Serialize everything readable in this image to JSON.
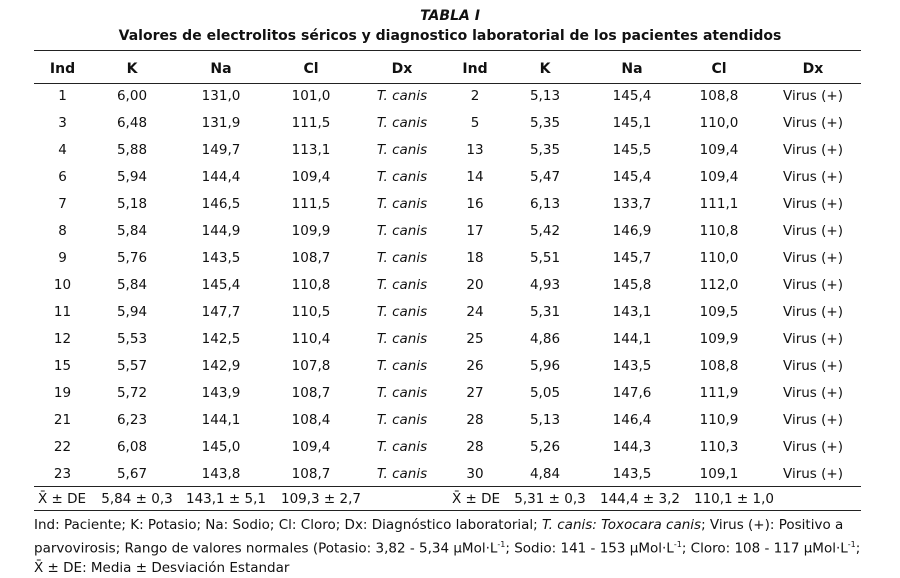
{
  "caption": {
    "label": "TABLA I",
    "title": "Valores de electrolitos séricos y diagnostico laboratorial de los pacientes atendidos"
  },
  "columns": [
    "Ind",
    "K",
    "Na",
    "Cl",
    "Dx",
    "Ind",
    "K",
    "Na",
    "Cl",
    "Dx"
  ],
  "rows": [
    [
      "1",
      "6,00",
      "131,0",
      "101,0",
      "T. canis",
      "2",
      "5,13",
      "145,4",
      "108,8",
      "Virus (+)"
    ],
    [
      "3",
      "6,48",
      "131,9",
      "111,5",
      "T. canis",
      "5",
      "5,35",
      "145,1",
      "110,0",
      "Virus (+)"
    ],
    [
      "4",
      "5,88",
      "149,7",
      "113,1",
      "T. canis",
      "13",
      "5,35",
      "145,5",
      "109,4",
      "Virus (+)"
    ],
    [
      "6",
      "5,94",
      "144,4",
      "109,4",
      "T. canis",
      "14",
      "5,47",
      "145,4",
      "109,4",
      "Virus (+)"
    ],
    [
      "7",
      "5,18",
      "146,5",
      "111,5",
      "T. canis",
      "16",
      "6,13",
      "133,7",
      "111,1",
      "Virus (+)"
    ],
    [
      "8",
      "5,84",
      "144,9",
      "109,9",
      "T. canis",
      "17",
      "5,42",
      "146,9",
      "110,8",
      "Virus (+)"
    ],
    [
      "9",
      "5,76",
      "143,5",
      "108,7",
      "T. canis",
      "18",
      "5,51",
      "145,7",
      "110,0",
      "Virus (+)"
    ],
    [
      "10",
      "5,84",
      "145,4",
      "110,8",
      "T. canis",
      "20",
      "4,93",
      "145,8",
      "112,0",
      "Virus (+)"
    ],
    [
      "11",
      "5,94",
      "147,7",
      "110,5",
      "T. canis",
      "24",
      "5,31",
      "143,1",
      "109,5",
      "Virus (+)"
    ],
    [
      "12",
      "5,53",
      "142,5",
      "110,4",
      "T. canis",
      "25",
      "4,86",
      "144,1",
      "109,9",
      "Virus (+)"
    ],
    [
      "15",
      "5,57",
      "142,9",
      "107,8",
      "T. canis",
      "26",
      "5,96",
      "143,5",
      "108,8",
      "Virus (+)"
    ],
    [
      "19",
      "5,72",
      "143,9",
      "108,7",
      "T. canis",
      "27",
      "5,05",
      "147,6",
      "111,9",
      "Virus (+)"
    ],
    [
      "21",
      "6,23",
      "144,1",
      "108,4",
      "T. canis",
      "28",
      "5,13",
      "146,4",
      "110,9",
      "Virus (+)"
    ],
    [
      "22",
      "6,08",
      "145,0",
      "109,4",
      "T. canis",
      "28",
      "5,26",
      "144,3",
      "110,3",
      "Virus (+)"
    ],
    [
      "23",
      "5,67",
      "143,8",
      "108,7",
      "T. canis",
      "30",
      "4,84",
      "143,5",
      "109,1",
      "Virus (+)"
    ]
  ],
  "summary": {
    "left": {
      "label": "X̄ ± DE",
      "k": "5,84 ± 0,3",
      "na": "143,1 ± 5,1",
      "cl": "109,3 ± 2,7"
    },
    "right": {
      "label": "X̄ ± DE",
      "k": "5,31 ± 0,3",
      "na": "144,4 ± 3,2",
      "cl": "110,1 ± 1,0"
    }
  },
  "footnote": {
    "line1_a": "Ind: Paciente; K: Potasio; Na: Sodio; Cl: Cloro; Dx: Diagnóstico laboratorial; ",
    "line1_it": "T. canis: Toxocara canis",
    "line1_b": "; Virus (+): Positivo a",
    "line2_a": "parvovirosis; Rango de valores normales (Potasio: 3,82 - 5,34 µMol·L",
    "line2_b": "; Sodio: 141 - 153 µMol·L",
    "line2_c": "; Cloro: 108 - 117 µMol·L",
    "line2_d": ";",
    "sup": "-1",
    "line3": "X̄ ± DE: Media ± Desviación Estandar"
  }
}
